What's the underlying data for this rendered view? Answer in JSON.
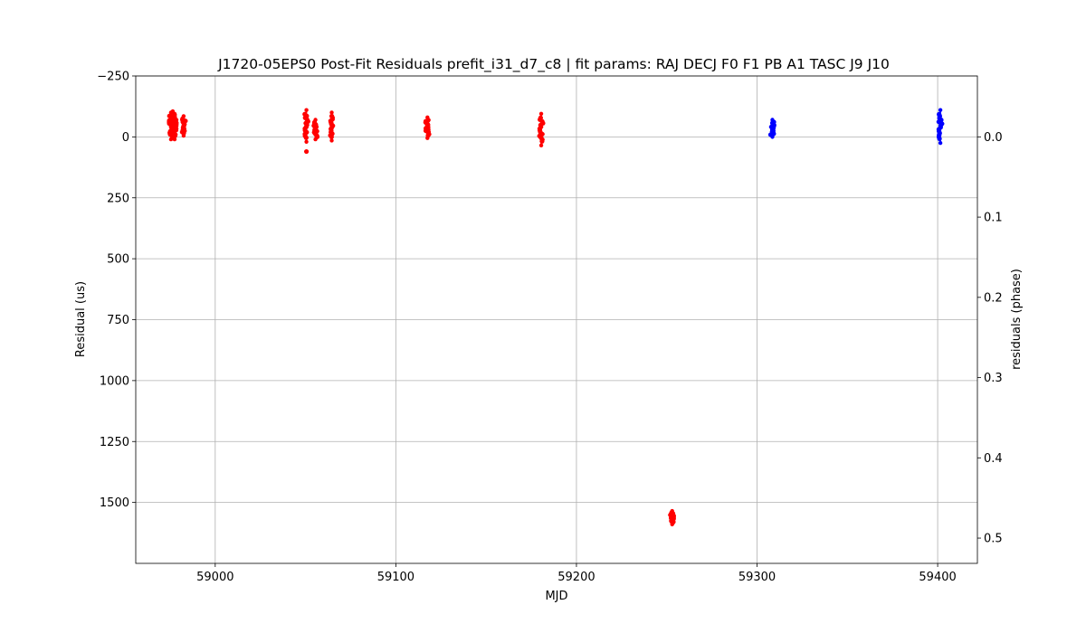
{
  "chart_data": {
    "type": "scatter",
    "title": "J1720-05EPS0 Post-Fit Residuals prefit_i31_d7_c8 | fit params: RAJ DECJ F0 F1 PB A1 TASC J9 J10",
    "xlabel": "MJD",
    "ylabel": "Residual (us)",
    "y2label": "residuals (phase)",
    "xlim": [
      58956,
      59422
    ],
    "ylim": [
      1750,
      -250
    ],
    "y_inverted": true,
    "y2lim": [
      0.5315,
      -0.0759
    ],
    "xticks": [
      59000,
      59100,
      59200,
      59300,
      59400
    ],
    "xtick_labels": [
      "59000",
      "59100",
      "59200",
      "59300",
      "59400"
    ],
    "yticks": [
      -250,
      0,
      250,
      500,
      750,
      1000,
      1250,
      1500
    ],
    "ytick_labels": [
      "−250",
      "0",
      "250",
      "500",
      "750",
      "1000",
      "1250",
      "1500"
    ],
    "y2ticks": [
      0.0,
      0.1,
      0.2,
      0.3,
      0.4,
      0.5
    ],
    "y2tick_labels": [
      "0.0",
      "0.1",
      "0.2",
      "0.3",
      "0.4",
      "0.5"
    ],
    "grid": true,
    "series": [
      {
        "color": "#ff0000",
        "clusters": [
          {
            "mjd": 58975.5,
            "y_min": 10,
            "y_max": -100
          },
          {
            "mjd": 58976.5,
            "y_min": 5,
            "y_max": -105
          },
          {
            "mjd": 58977.5,
            "y_min": 10,
            "y_max": -95
          },
          {
            "mjd": 58982.5,
            "y_min": -5,
            "y_max": -85
          },
          {
            "mjd": 59050.5,
            "y_min": 20,
            "y_max": -110,
            "outlier": 60
          },
          {
            "mjd": 59055.5,
            "y_min": 10,
            "y_max": -70
          },
          {
            "mjd": 59064.5,
            "y_min": 15,
            "y_max": -100
          },
          {
            "mjd": 59117.5,
            "y_min": 5,
            "y_max": -80
          },
          {
            "mjd": 59180.5,
            "y_min": 35,
            "y_max": -95
          },
          {
            "mjd": 59253.0,
            "y_min": 1590,
            "y_max": 1535
          }
        ]
      },
      {
        "color": "#0000ff",
        "clusters": [
          {
            "mjd": 59308.5,
            "y_min": 0,
            "y_max": -70
          },
          {
            "mjd": 59401.5,
            "y_min": 25,
            "y_max": -110
          }
        ]
      }
    ]
  }
}
